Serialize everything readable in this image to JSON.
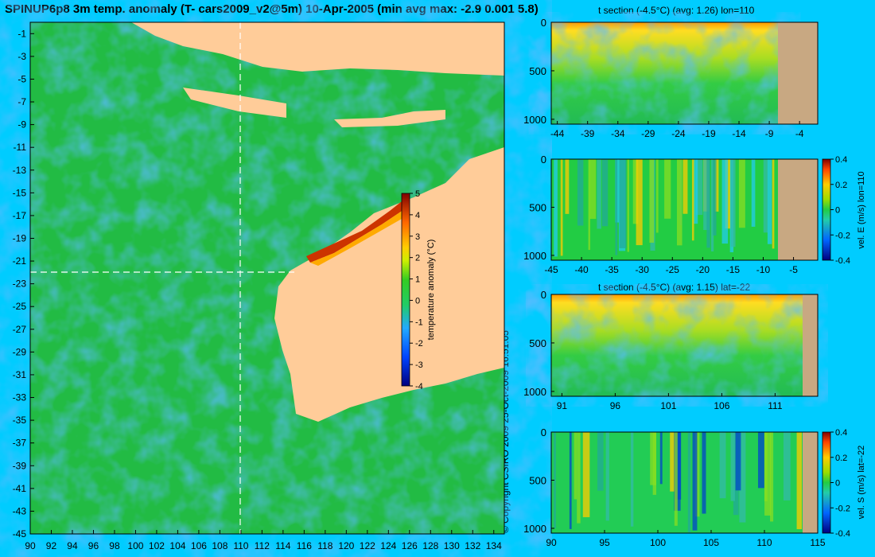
{
  "title": "SPINUP6p8 3m temp. anomaly (T- cars2009_v2@5m) 10-Apr-2005 (min avg max: -2.9 0.001 5.8)",
  "copyright": "© Copyright CSIRO 2009  25-Oct-2009 16:51:05",
  "colors": {
    "background": "#00ccff",
    "land": "#ffcc99",
    "seafloor": "#c8a882",
    "ocean_base": "#22bb44"
  },
  "chart_data": [
    {
      "type": "heatmap",
      "name": "map",
      "title": "",
      "xlim": [
        90,
        135
      ],
      "ylim": [
        -45,
        0
      ],
      "x_ticks": [
        "90",
        "92",
        "94",
        "96",
        "98",
        "100",
        "102",
        "104",
        "106",
        "108",
        "110",
        "112",
        "114",
        "116",
        "118",
        "120",
        "122",
        "124",
        "126",
        "128",
        "130",
        "132",
        "134"
      ],
      "y_ticks": [
        "-1",
        "-3",
        "-5",
        "-7",
        "-9",
        "-11",
        "-13",
        "-15",
        "-17",
        "-19",
        "-21",
        "-23",
        "-25",
        "-27",
        "-29",
        "-31",
        "-33",
        "-35",
        "-37",
        "-39",
        "-41",
        "-43",
        "-45"
      ],
      "section_lon": 110,
      "section_lat": -22,
      "colorbar": {
        "label": "temperature anomaly (°C)",
        "min": -4,
        "max": 5,
        "ticks": [
          "5",
          "4",
          "3",
          "2",
          "1",
          "0",
          "-1",
          "-2",
          "-3",
          "-4"
        ]
      }
    },
    {
      "type": "heatmap",
      "name": "t-section-lon",
      "title": "t section (-4.5°C) (avg: 1.26) lon=110",
      "xlim": [
        -45,
        -1
      ],
      "ylim": [
        1050,
        0
      ],
      "x_ticks": [
        "-44",
        "-39",
        "-34",
        "-29",
        "-24",
        "-19",
        "-14",
        "-9",
        "-4"
      ],
      "y_ticks": [
        "0",
        "500",
        "1000"
      ]
    },
    {
      "type": "heatmap",
      "name": "vel-e-section",
      "title": "",
      "xlim": [
        -45,
        -1
      ],
      "ylim": [
        1050,
        0
      ],
      "x_ticks": [
        "-45",
        "-40",
        "-35",
        "-30",
        "-25",
        "-20",
        "-15",
        "-10",
        "-5"
      ],
      "y_ticks": [
        "0",
        "500",
        "1000"
      ],
      "colorbar": {
        "label": "vel. E (m/s) lon=110",
        "min": -0.4,
        "max": 0.4,
        "ticks": [
          "0.4",
          "0.2",
          "0",
          "-0.2",
          "-0.4"
        ]
      }
    },
    {
      "type": "heatmap",
      "name": "t-section-lat",
      "title": "t section (-4.5°C) (avg: 1.15) lat=-22",
      "xlim": [
        90,
        115
      ],
      "ylim": [
        1050,
        0
      ],
      "x_ticks": [
        "91",
        "96",
        "101",
        "106",
        "111"
      ],
      "y_ticks": [
        "0",
        "500",
        "1000"
      ]
    },
    {
      "type": "heatmap",
      "name": "vel-s-section",
      "title": "",
      "xlim": [
        90,
        115
      ],
      "ylim": [
        1050,
        0
      ],
      "x_ticks": [
        "90",
        "95",
        "100",
        "105",
        "110",
        "115"
      ],
      "y_ticks": [
        "0",
        "500",
        "1000"
      ],
      "colorbar": {
        "label": "vel. S (m/s) lat=-22",
        "min": -0.4,
        "max": 0.4,
        "ticks": [
          "0.4",
          "0.2",
          "0",
          "-0.2",
          "-0.4"
        ]
      }
    }
  ]
}
